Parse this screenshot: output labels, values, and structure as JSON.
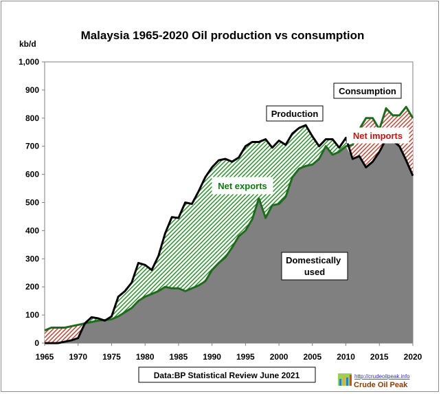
{
  "chart_data": {
    "type": "area",
    "title": "Malaysia  1965-2020 Oil production  vs consumption",
    "ylabel": "kb/d",
    "xlabel": "",
    "xlim": [
      1965,
      2020
    ],
    "ylim": [
      0,
      1000
    ],
    "x_ticks": [
      1965,
      1970,
      1975,
      1980,
      1985,
      1990,
      1995,
      2000,
      2005,
      2010,
      2015,
      2020
    ],
    "y_ticks": [
      {
        "value": 0,
        "label": "0"
      },
      {
        "value": 100,
        "label": "100"
      },
      {
        "value": 200,
        "label": "200"
      },
      {
        "value": 300,
        "label": "300"
      },
      {
        "value": 400,
        "label": "400"
      },
      {
        "value": 500,
        "label": "500"
      },
      {
        "value": 600,
        "label": "600"
      },
      {
        "value": 700,
        "label": "700"
      },
      {
        "value": 800,
        "label": "800"
      },
      {
        "value": 900,
        "label": "900"
      },
      {
        "value": 1000,
        "label": "1,000"
      }
    ],
    "grid": false,
    "x": [
      1965,
      1966,
      1967,
      1968,
      1969,
      1970,
      1971,
      1972,
      1973,
      1974,
      1975,
      1976,
      1977,
      1978,
      1979,
      1980,
      1981,
      1982,
      1983,
      1984,
      1985,
      1986,
      1987,
      1988,
      1989,
      1990,
      1991,
      1992,
      1993,
      1994,
      1995,
      1996,
      1997,
      1998,
      1999,
      2000,
      2001,
      2002,
      2003,
      2004,
      2005,
      2006,
      2007,
      2008,
      2009,
      2010,
      2011,
      2012,
      2013,
      2014,
      2015,
      2016,
      2017,
      2018,
      2019,
      2020
    ],
    "series": [
      {
        "name": "Production",
        "values": [
          0,
          0,
          0,
          5,
          10,
          18,
          70,
          92,
          88,
          80,
          95,
          165,
          185,
          215,
          285,
          278,
          260,
          310,
          390,
          448,
          445,
          500,
          495,
          540,
          590,
          625,
          650,
          655,
          645,
          660,
          700,
          715,
          715,
          725,
          695,
          720,
          705,
          745,
          765,
          775,
          735,
          700,
          725,
          725,
          695,
          730,
          655,
          665,
          625,
          645,
          680,
          725,
          720,
          700,
          650,
          595
        ]
      },
      {
        "name": "Consumption",
        "values": [
          45,
          55,
          55,
          55,
          60,
          65,
          70,
          75,
          80,
          82,
          85,
          95,
          110,
          125,
          150,
          165,
          175,
          185,
          200,
          195,
          195,
          185,
          195,
          205,
          220,
          260,
          285,
          305,
          340,
          380,
          400,
          440,
          515,
          445,
          490,
          495,
          520,
          590,
          620,
          630,
          635,
          655,
          700,
          670,
          680,
          700,
          705,
          760,
          800,
          800,
          760,
          835,
          810,
          810,
          840,
          800
        ]
      }
    ],
    "annotations": [
      "Production",
      "Consumption",
      "Net exports",
      "Net imports",
      "Domestically used"
    ],
    "source": "Data:BP Statistical Review June 2021",
    "logo": {
      "url": "http://crudeoilpeak.info",
      "name": "Crude Oil Peak"
    },
    "colors": {
      "production_line": "#000000",
      "consumption_line": "#1e6b1e",
      "domestic_fill": "#808080",
      "net_exports_hatch": "#1e8c1e",
      "net_imports_hatch": "#c0392b",
      "net_exports_text": "#0a7a0a",
      "net_imports_text": "#cc1111",
      "plot_background": "#ffffff"
    }
  }
}
